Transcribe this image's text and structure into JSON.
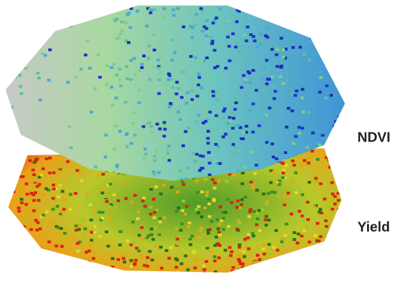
{
  "labels": {
    "ndvi": "NDVI",
    "yield": "Yield"
  }
}
